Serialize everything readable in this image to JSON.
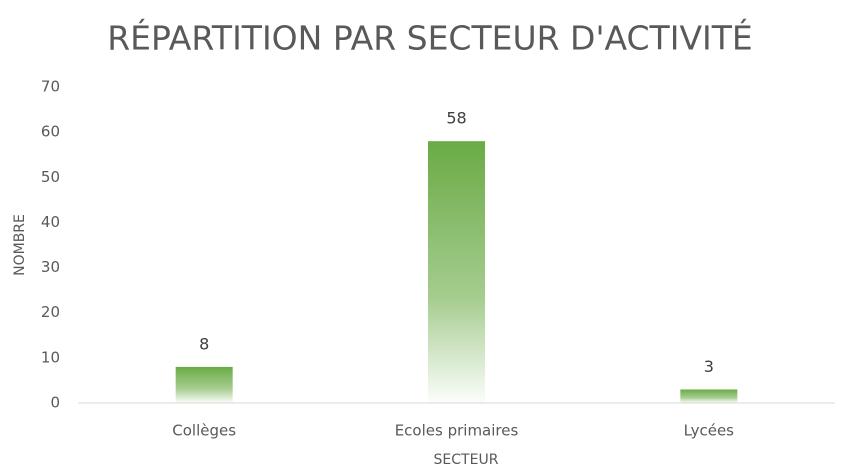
{
  "chart_data": {
    "type": "bar",
    "title": "RÉPARTITION PAR SECTEUR D'ACTIVITÉ",
    "x_label": "SECTEUR",
    "y_label": "NOMBRE",
    "categories": [
      "Collèges",
      "Ecoles primaires",
      "Lycées"
    ],
    "values": [
      8,
      58,
      3
    ],
    "color": "#6aab45",
    "ylim": [
      0,
      70
    ],
    "yticks": [
      0,
      10,
      20,
      30,
      40,
      50,
      60,
      70
    ],
    "grid": false
  }
}
